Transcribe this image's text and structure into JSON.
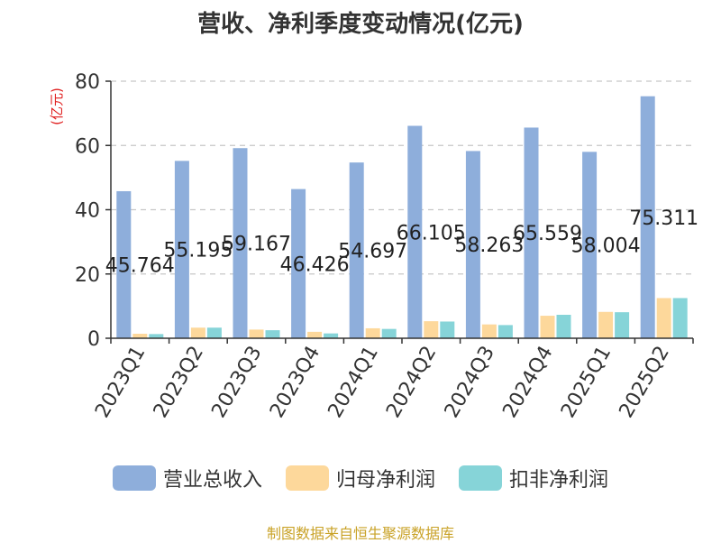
{
  "chart_data": {
    "type": "bar",
    "title": "营收、净利季度变动情况(亿元)",
    "ylabel": "(亿元)",
    "xlabel": "",
    "ylim": [
      0,
      80
    ],
    "yticks": [
      0,
      20,
      40,
      60,
      80
    ],
    "grid": true,
    "legend_position": "bottom",
    "categories": [
      "2023Q1",
      "2023Q2",
      "2023Q3",
      "2023Q4",
      "2024Q1",
      "2024Q2",
      "2024Q3",
      "2024Q4",
      "2025Q1",
      "2025Q2"
    ],
    "series": [
      {
        "name": "营业总收入",
        "color": "#8eaedb",
        "values": [
          45.764,
          55.195,
          59.167,
          46.426,
          54.697,
          66.105,
          58.263,
          65.559,
          58.004,
          75.311
        ],
        "labels": [
          "45.764",
          "55.195",
          "59.167",
          "46.426",
          "54.697",
          "66.105",
          "58.263",
          "65.559",
          "58.004",
          "75.311"
        ]
      },
      {
        "name": "归母净利润",
        "color": "#fdd89b",
        "values": [
          1.4,
          3.3,
          2.7,
          2.0,
          3.1,
          5.3,
          4.3,
          7.0,
          8.2,
          12.5
        ]
      },
      {
        "name": "扣非净利润",
        "color": "#86d4d8",
        "values": [
          1.3,
          3.3,
          2.5,
          1.5,
          2.9,
          5.2,
          4.1,
          7.3,
          8.1,
          12.5
        ]
      }
    ]
  },
  "source": "制图数据来自恒生聚源数据库"
}
